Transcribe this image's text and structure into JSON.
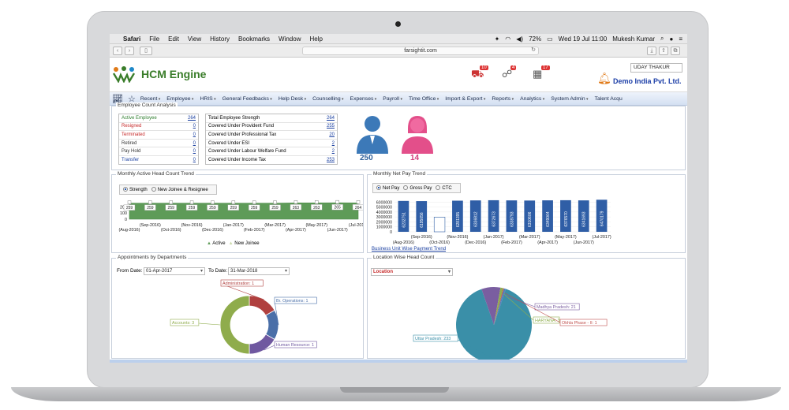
{
  "mac_menu": {
    "apple": "",
    "items": [
      "Safari",
      "File",
      "Edit",
      "View",
      "History",
      "Bookmarks",
      "Window",
      "Help"
    ],
    "battery": "72%",
    "datetime": "Wed 19 Jul  11:00",
    "user": "Mukesh Kumar"
  },
  "browser": {
    "url": "farsightit.com"
  },
  "header": {
    "logo_text": "HCM Engine",
    "user_select": "UDAY  THAKUR",
    "company": "Demo India Pvt. Ltd.",
    "badges": [
      "10",
      "4",
      "17"
    ]
  },
  "nav": {
    "items": [
      "Recent",
      "Employee",
      "HRIS",
      "General Feedbacks",
      "Help Desk",
      "Counselling",
      "Expenses",
      "Payroll",
      "Time Office",
      "Import & Export",
      "Reports",
      "Analytics",
      "System Admin",
      "Talent Acqu"
    ]
  },
  "emp_count": {
    "title": "Employee Count Analysis",
    "left": [
      {
        "label": "Active Employee",
        "value": "264",
        "color": "#2e7d2e"
      },
      {
        "label": "Resigned",
        "value": "0",
        "color": "#c62828"
      },
      {
        "label": "Terminated",
        "value": "0",
        "color": "#c62828"
      },
      {
        "label": "Retired",
        "value": "0",
        "color": "#333333"
      },
      {
        "label": "Pay Hold",
        "value": "0",
        "color": "#333333"
      },
      {
        "label": "Transfer",
        "value": "0",
        "color": "#1a3fa0"
      }
    ],
    "right": [
      {
        "label": "Total Employee Strength",
        "value": "264"
      },
      {
        "label": "Covered Under Provident Fund",
        "value": "255"
      },
      {
        "label": "Covered Under Professional Tax",
        "value": "20"
      },
      {
        "label": "Covered Under ESI",
        "value": "2"
      },
      {
        "label": "Covered Under Labour Welfare Fund",
        "value": "2"
      },
      {
        "label": "Covered Under Income Tax",
        "value": "253"
      }
    ],
    "male_count": "250",
    "female_count": "14"
  },
  "headcount": {
    "title": "Monthly Active Head Count Trend",
    "radio": [
      "Strength",
      "New Joinee & Resignee"
    ],
    "legend": [
      "Active",
      "New Joinee"
    ]
  },
  "netpay": {
    "title": "Monthly Net Pay Trend",
    "radio": [
      "Net Pay",
      "Gross Pay",
      "CTC"
    ],
    "link": "Business Unit Wise Payment Trend"
  },
  "appointments": {
    "title": "Appointments by Departments",
    "from_label": "From Date:",
    "from_value": "01-Apr-2017",
    "to_label": "To Date:",
    "to_value": "31-Mar-2018"
  },
  "location": {
    "title": "Location Wise Head Count",
    "select": "Location"
  },
  "chart_data": [
    {
      "type": "area",
      "title": "Monthly Active Head Count Trend",
      "categories": [
        "(Aug-2016)",
        "(Sep-2016)",
        "(Oct-2016)",
        "(Nov-2016)",
        "(Dec-2016)",
        "(Jan-2017)",
        "(Feb-2017)",
        "(Mar-2017)",
        "(Apr-2017)",
        "(May-2017)",
        "(Jun-2017)",
        "(Jul-2017)"
      ],
      "series": [
        {
          "name": "Active",
          "values": [
            259,
            259,
            259,
            259,
            259,
            259,
            259,
            259,
            263,
            263,
            265,
            264
          ]
        },
        {
          "name": "New Joinee",
          "values": [
            0,
            0,
            0,
            0,
            0,
            0,
            0,
            0,
            0,
            0,
            0,
            0
          ]
        }
      ],
      "yticks": [
        "0",
        "100",
        "200"
      ],
      "ylim": [
        0,
        280
      ],
      "color": "#5e9b58",
      "value_labels": [
        "259",
        "259",
        "259",
        "259",
        "259",
        "259",
        "259",
        "259",
        "263",
        "263",
        "265",
        "264"
      ]
    },
    {
      "type": "bar",
      "title": "Monthly Net Pay Trend",
      "categories": [
        "(Aug-2016)",
        "(Sep-2016)",
        "(Oct-2016)",
        "(Nov-2016)",
        "(Dec-2016)",
        "(Jan-2017)",
        "(Feb-2017)",
        "(Mar-2017)",
        "(Apr-2017)",
        "(May-2017)",
        "(Jun-2017)",
        "(Jul-2017)"
      ],
      "values": [
        6232751,
        6195056,
        2964400,
        6281395,
        6336812,
        6372673,
        6338793,
        6310606,
        6349064,
        6376570,
        6341693,
        6470179
      ],
      "labels": [
        "6232751",
        "6195056",
        "",
        "6281395",
        "6336812",
        "6372673",
        "6338793",
        "6310606",
        "6349064",
        "6376570",
        "6341693",
        "6470179"
      ],
      "hollow_index": 2,
      "yticks": [
        "0",
        "1000000",
        "2000000",
        "3000000",
        "4000000",
        "5000000",
        "6000000"
      ],
      "ylim": [
        0,
        7000000
      ],
      "color": "#2f5ea6"
    },
    {
      "type": "pie",
      "title": "Appointments by Departments",
      "donut": true,
      "slices": [
        {
          "label": "Administration: 1",
          "value": 1,
          "color": "#b0403f"
        },
        {
          "label": "Br. Operations: 1",
          "value": 1,
          "color": "#4a6fa8"
        },
        {
          "label": "Human Resource: 1",
          "value": 1,
          "color": "#6f58a0"
        },
        {
          "label": "Accounts: 3",
          "value": 3,
          "color": "#8fac4c"
        }
      ]
    },
    {
      "type": "pie",
      "title": "Location Wise Head Count",
      "slices": [
        {
          "label": "Uttar Pradesh: 233",
          "value": 233,
          "color": "#3a8fa8"
        },
        {
          "label": "Madhya Pradesh: 21",
          "value": 21,
          "color": "#7a5ea0"
        },
        {
          "label": "HARYANA: 3",
          "value": 3,
          "color": "#8fae4e"
        },
        {
          "label": "Okhla Phase - II: 1",
          "value": 1,
          "color": "#c0504d"
        },
        {
          "label": "2",
          "value": 2,
          "color": "#4f81bd"
        }
      ]
    }
  ]
}
